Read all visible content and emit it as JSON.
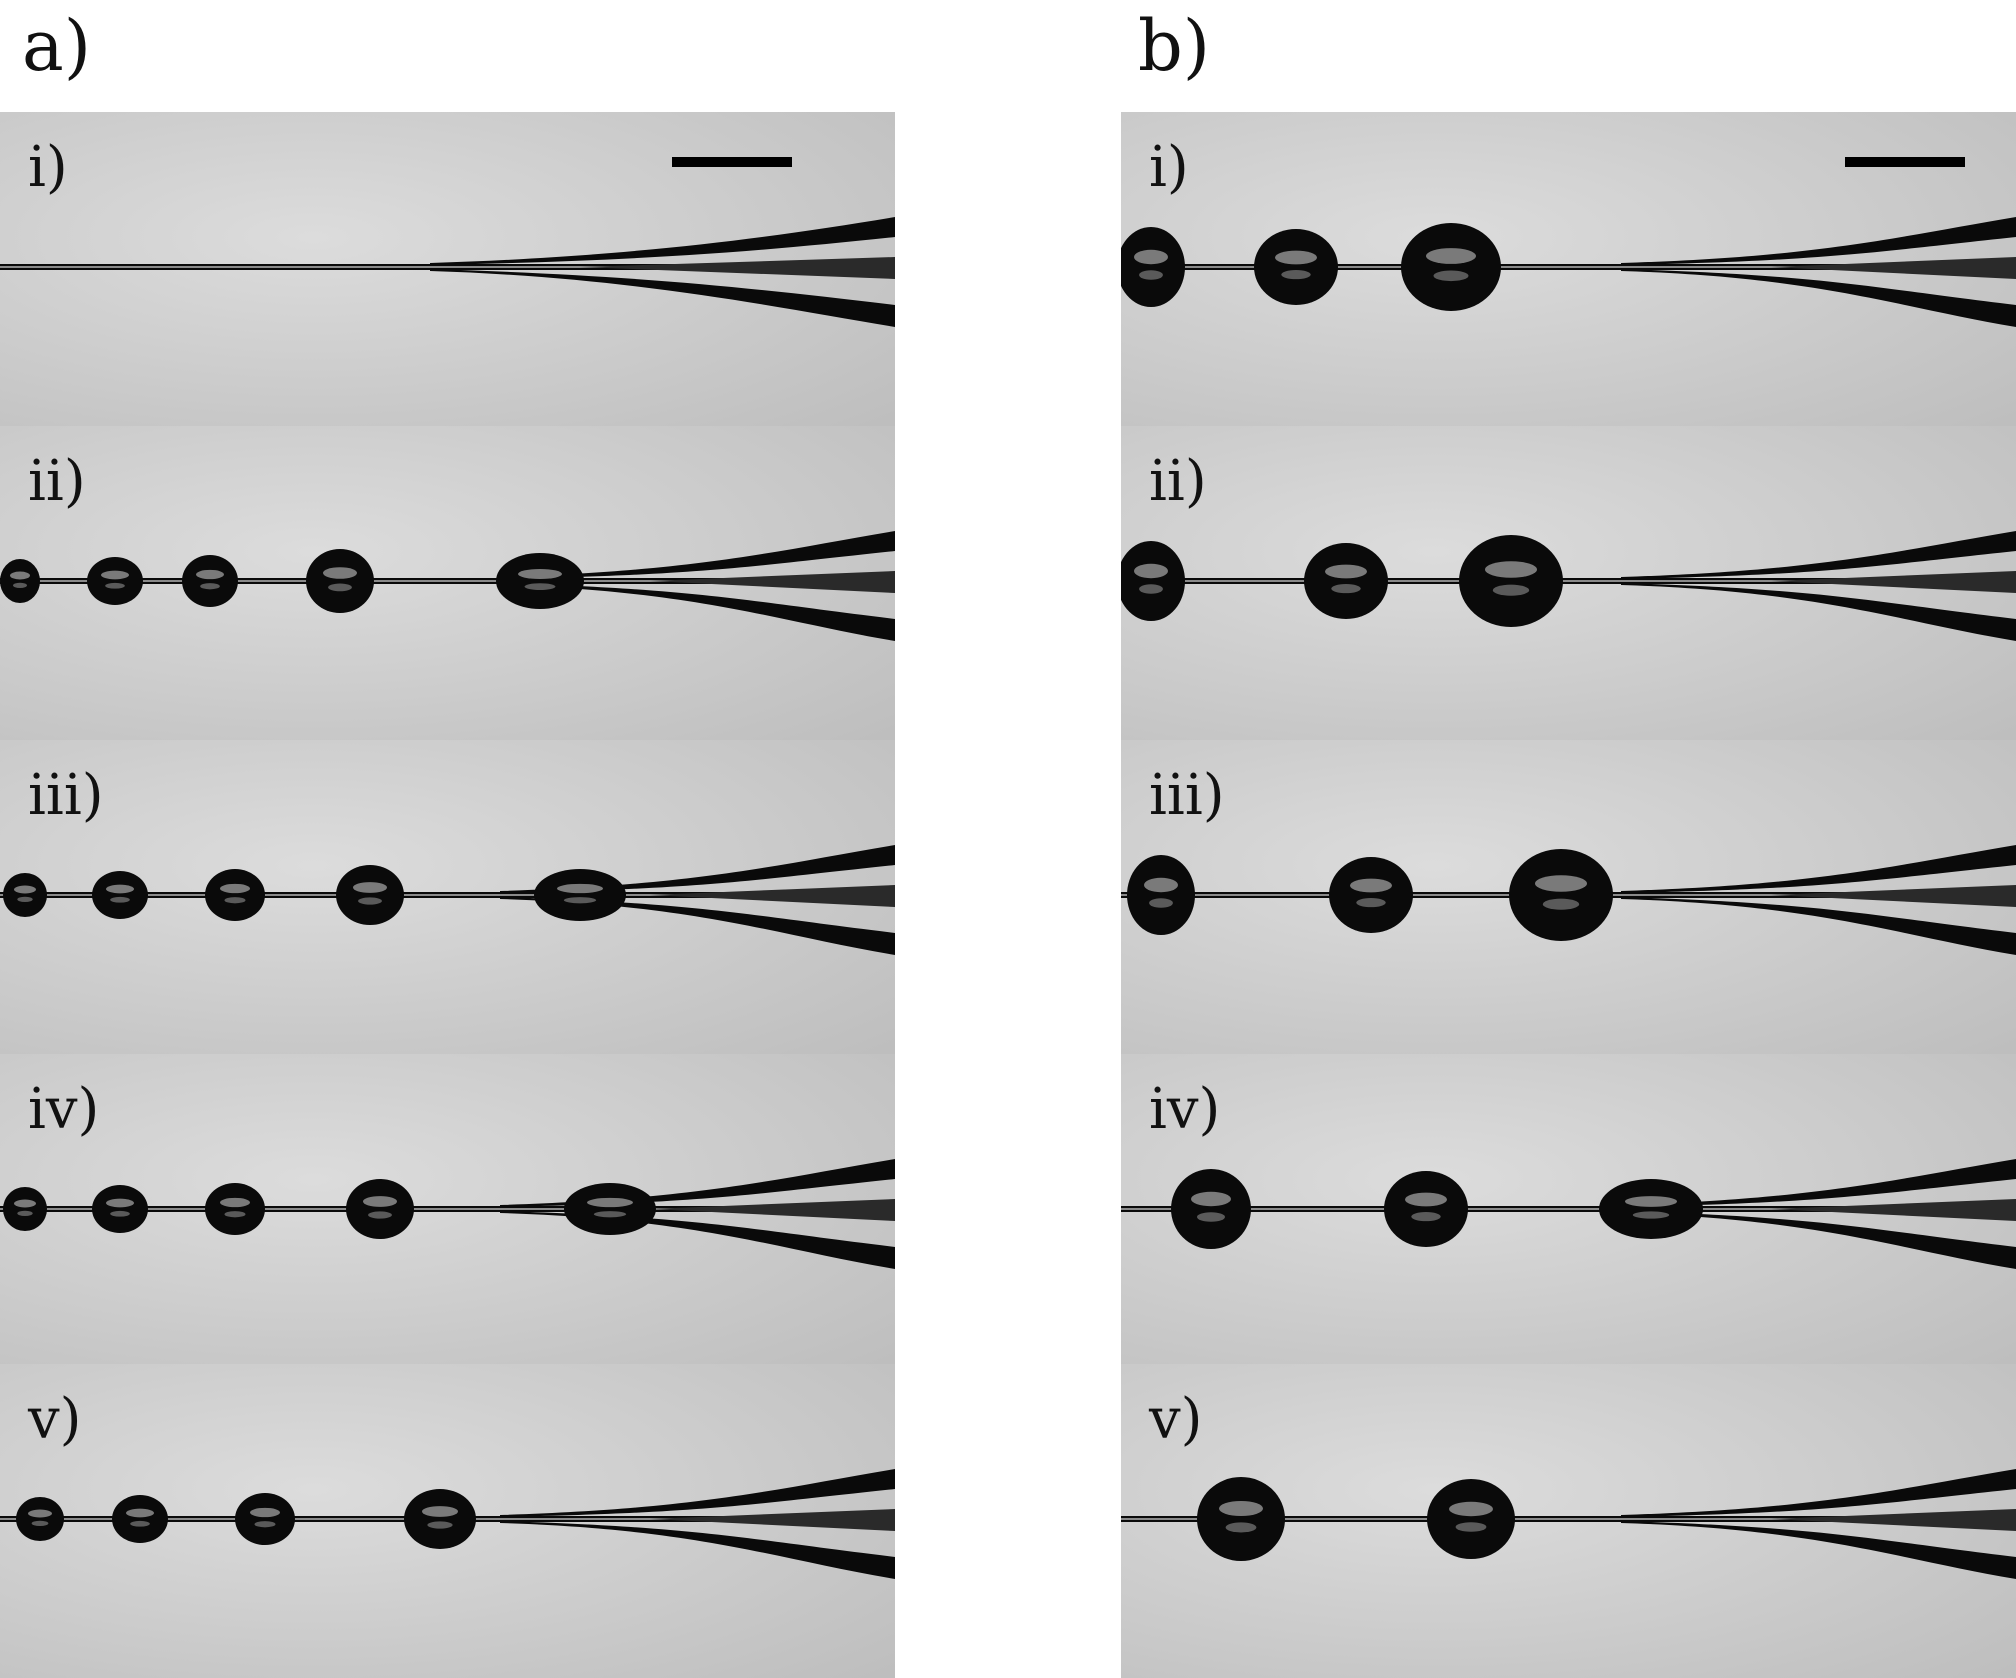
{
  "figure": {
    "columns": [
      {
        "id": "a",
        "label": "a)",
        "panels": [
          {
            "label": "i)",
            "bead_count": 0
          },
          {
            "label": "ii)",
            "bead_count": 5
          },
          {
            "label": "iii)",
            "bead_count": 5
          },
          {
            "label": "iv)",
            "bead_count": 5
          },
          {
            "label": "v)",
            "bead_count": 4
          }
        ]
      },
      {
        "id": "b",
        "label": "b)",
        "panels": [
          {
            "label": "i)",
            "bead_count": 3
          },
          {
            "label": "ii)",
            "bead_count": 3
          },
          {
            "label": "iii)",
            "bead_count": 3
          },
          {
            "label": "iv)",
            "bead_count": 3
          },
          {
            "label": "v)",
            "bead_count": 2
          }
        ]
      }
    ],
    "colors": {
      "background_light": "#dcdcdc",
      "background_dark": "#bdbdbd",
      "filament": "#0a0a0a"
    }
  }
}
